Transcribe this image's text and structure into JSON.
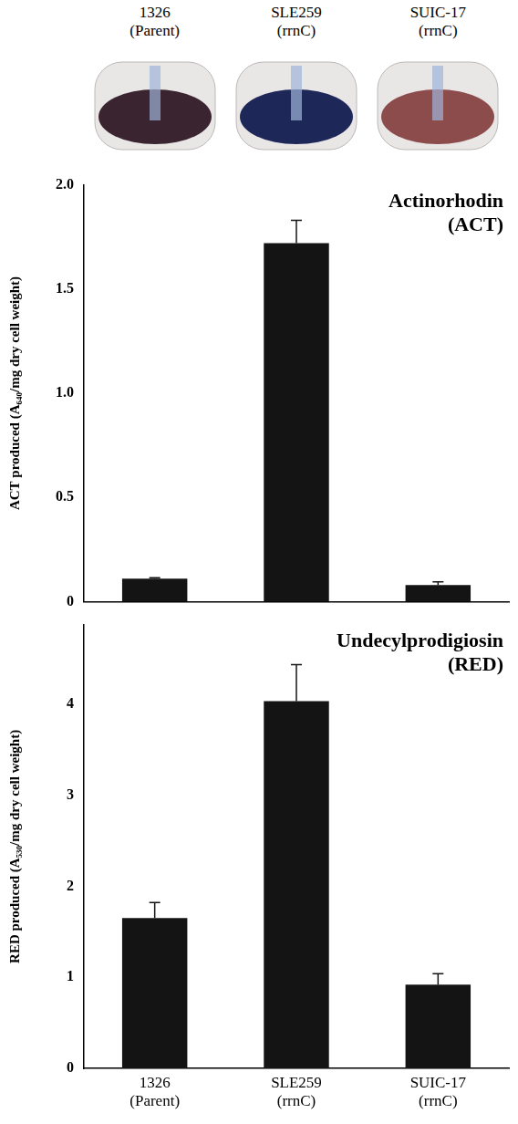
{
  "images": {
    "captions": [
      "1326 (Parent)",
      "SLE259 (rrnC)",
      "SUIC-17 (rrnC)"
    ]
  },
  "chart_data": [
    {
      "type": "bar",
      "title": "Actinorhodin (ACT)",
      "y_label": "ACT produced (A₆₄₀/mg dry cell weight)",
      "categories": [
        "1326 (Parent)",
        "SLE259 (rrnC)",
        "SUIC-17 (rrnC)"
      ],
      "values": [
        0.11,
        1.72,
        0.08
      ],
      "errors": [
        0.005,
        0.11,
        0.015
      ],
      "color": "#141414",
      "ylim": [
        0,
        2
      ],
      "yticks": [
        0,
        0.5,
        {
          "value": 1,
          "label": "1.0"
        },
        1.5,
        {
          "value": 2,
          "label": "2.0"
        }
      ],
      "grid": false,
      "tick_labels": "y"
    },
    {
      "type": "bar",
      "title": "Undecylprodigiosin (RED)",
      "y_label": "RED produced (A₅₃₀/mg dry cell weight)",
      "categories": [
        "1326 (Parent)",
        "SLE259 (rrnC)",
        "SUIC-17 (rrnC)"
      ],
      "values": [
        1.65,
        4.03,
        0.92
      ],
      "errors": [
        0.17,
        0.4,
        0.12
      ],
      "color": "#141414",
      "ylim": [
        0,
        4.87
      ],
      "yticks": [
        0,
        1,
        2,
        3,
        4
      ],
      "grid": false,
      "tick_labels": true
    }
  ]
}
